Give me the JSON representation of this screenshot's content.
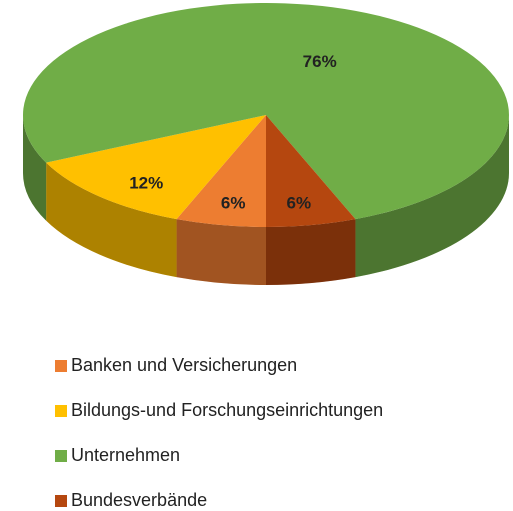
{
  "chart_data": {
    "type": "pie",
    "categories": [
      "Banken und Versicherungen",
      "Bildungs-und Forschungseinrichtungen",
      "Unternehmen",
      "Bundesverbände"
    ],
    "values": [
      6,
      12,
      76,
      6
    ],
    "value_labels": [
      "6%",
      "12%",
      "76%",
      "6%"
    ],
    "colors": [
      "#ed7d31",
      "#ffc000",
      "#70ad47",
      "#b5470f"
    ]
  }
}
